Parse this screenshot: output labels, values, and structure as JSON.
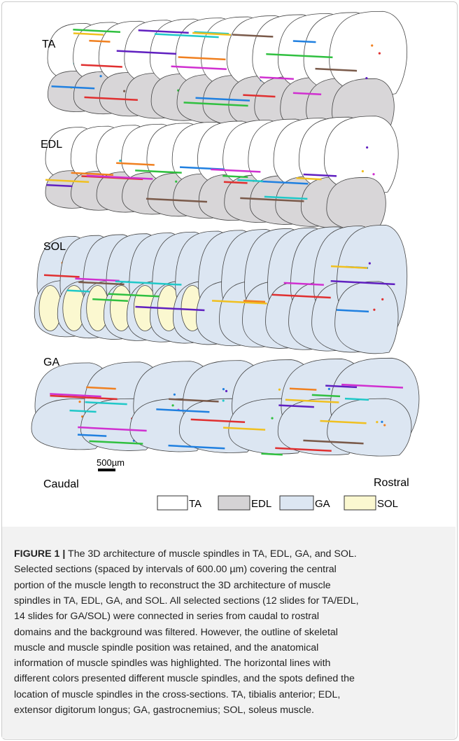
{
  "figure": {
    "panels": [
      "TA",
      "EDL",
      "SOL",
      "GA"
    ],
    "scale_bar": "500µm",
    "caudal": "Caudal",
    "rostral": "Rostral",
    "legend": [
      "TA",
      "EDL",
      "GA",
      "SOL"
    ]
  },
  "caption": {
    "label": "FIGURE 1 |",
    "lines": [
      "The 3D architecture of muscle spindles in TA, EDL, GA, and SOL.",
      "Selected sections (spaced by intervals of 600.00 µm) covering the central",
      "portion of the muscle length to reconstruct the 3D architecture of muscle",
      "spindles in TA, EDL, GA, and SOL. All selected sections (12 slides for TA/EDL,",
      "14 slides for GA/SOL) were connected in series from caudal to rostral",
      "domains and the background was filtered. However, the outline of skeletal",
      "muscle and muscle spindle position was retained, and the anatomical",
      "information of muscle spindles was highlighted. The horizontal lines with",
      "different colors presented different muscle spindles, and the spots defined the",
      "location of muscle spindles in the cross-sections. TA, tibialis anterior; EDL,",
      "extensor digitorum longus; GA, gastrocnemius; SOL, soleus muscle."
    ]
  }
}
